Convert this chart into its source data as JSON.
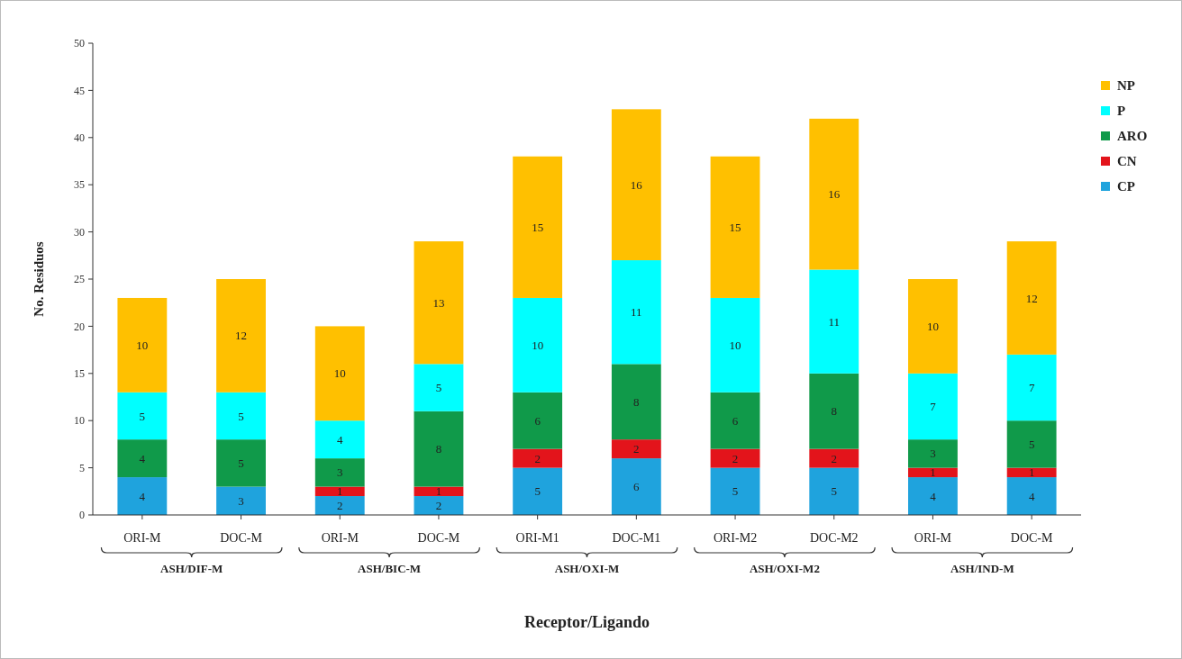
{
  "chart_data": {
    "type": "bar",
    "stacked": true,
    "xlabel": "Receptor/Ligando",
    "ylabel": "No. Residuos",
    "categories": [
      "ORI-M",
      "DOC-M",
      "ORI-M",
      "DOC-M",
      "ORI-M1",
      "DOC-M1",
      "ORI-M2",
      "DOC-M2",
      "ORI-M",
      "DOC-M"
    ],
    "annotations": [
      "ASH/DIF-M",
      "ASH/BIC-M",
      "ASH/OXI-M",
      "ASH/OXI-M2",
      "ASH/IND-M"
    ],
    "series": [
      {
        "name": "CP",
        "color": "#1fa3dd",
        "values": [
          4,
          3,
          2,
          2,
          5,
          6,
          5,
          5,
          4,
          4
        ],
        "value_labels": [
          "4",
          "3",
          "2",
          "2",
          "5",
          "6",
          "5",
          "5",
          "4",
          "4"
        ]
      },
      {
        "name": "CN",
        "color": "#e3141b",
        "values": [
          0,
          0,
          1,
          1,
          2,
          2,
          2,
          2,
          1,
          1
        ],
        "value_labels": [
          null,
          null,
          "1",
          "1",
          "2",
          "2",
          "2",
          "2",
          "1",
          "1"
        ]
      },
      {
        "name": "ARO",
        "color": "#109a4a",
        "values": [
          4,
          5,
          3,
          8,
          6,
          8,
          6,
          8,
          3,
          5
        ],
        "value_labels": [
          "4",
          "5",
          "3",
          "8",
          "6",
          "8",
          "6",
          "8",
          "3",
          "5"
        ]
      },
      {
        "name": "P",
        "color": "#00ffff",
        "values": [
          5,
          5,
          4,
          5,
          10,
          11,
          10,
          11,
          7,
          7
        ],
        "value_labels": [
          "5",
          "5",
          "4",
          "5",
          "10",
          "11",
          "10",
          "11",
          "7",
          "7"
        ]
      },
      {
        "name": "NP",
        "color": "#ffc000",
        "values": [
          10,
          12,
          10,
          13,
          15,
          16,
          15,
          16,
          10,
          12
        ],
        "value_labels": [
          "10",
          "12",
          "10",
          "13",
          "15",
          "16",
          "15",
          "16",
          "10",
          "12"
        ]
      }
    ],
    "ylim": [
      0,
      50
    ],
    "yticks": [
      0,
      5,
      10,
      15,
      20,
      25,
      30,
      35,
      40,
      45,
      50
    ],
    "grid": false,
    "legend": "right"
  }
}
